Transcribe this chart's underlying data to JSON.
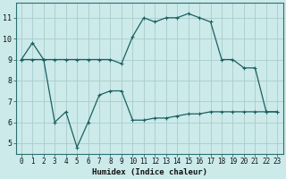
{
  "xlabel": "Humidex (Indice chaleur)",
  "bg_color": "#cceaea",
  "grid_color": "#aacccc",
  "line_color": "#1a6060",
  "line1_x": [
    0,
    1,
    2,
    3,
    4,
    5,
    6,
    7,
    8,
    9,
    10,
    11,
    12,
    13,
    14,
    15,
    16,
    17,
    18,
    19,
    20,
    21,
    22,
    23
  ],
  "line1_y": [
    9.0,
    9.8,
    9.0,
    9.0,
    9.0,
    9.0,
    9.0,
    9.0,
    9.0,
    8.8,
    10.1,
    11.0,
    10.8,
    11.0,
    11.0,
    11.2,
    11.0,
    10.8,
    9.0,
    9.0,
    8.6,
    8.6,
    6.5,
    6.5
  ],
  "line2_x": [
    0,
    1,
    2,
    3,
    4,
    5,
    6,
    7,
    8,
    9,
    10,
    11,
    12,
    13,
    14,
    15,
    16,
    17,
    18,
    19,
    20,
    21,
    22,
    23
  ],
  "line2_y": [
    9.0,
    9.0,
    9.0,
    6.0,
    6.5,
    4.8,
    6.0,
    7.3,
    7.5,
    7.5,
    6.1,
    6.1,
    6.2,
    6.2,
    6.3,
    6.4,
    6.4,
    6.5,
    6.5,
    6.5,
    6.5,
    6.5,
    6.5,
    6.5
  ],
  "ylim": [
    4.5,
    11.7
  ],
  "yticks": [
    5,
    6,
    7,
    8,
    9,
    10,
    11
  ],
  "xticks": [
    0,
    1,
    2,
    3,
    4,
    5,
    6,
    7,
    8,
    9,
    10,
    11,
    12,
    13,
    14,
    15,
    16,
    17,
    18,
    19,
    20,
    21,
    22,
    23
  ],
  "tick_fontsize": 5.5,
  "xlabel_fontsize": 6.5
}
